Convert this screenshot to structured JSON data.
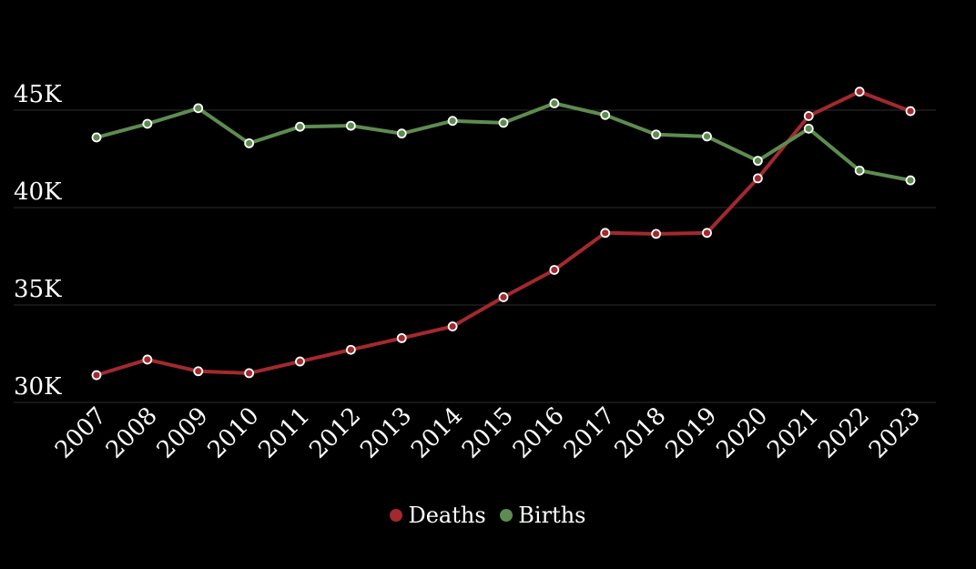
{
  "chart_data": {
    "type": "line",
    "title": "",
    "xlabel": "",
    "ylabel": "",
    "categories": [
      "2007",
      "2008",
      "2009",
      "2010",
      "2011",
      "2012",
      "2013",
      "2014",
      "2015",
      "2016",
      "2017",
      "2018",
      "2019",
      "2020",
      "2021",
      "2022",
      "2023"
    ],
    "series": [
      {
        "name": "Deaths",
        "color": "#a3292d",
        "values": [
          31400,
          32200,
          31600,
          31500,
          32100,
          32700,
          33300,
          33900,
          35400,
          36800,
          38700,
          38650,
          38700,
          41500,
          44700,
          45950,
          44950
        ]
      },
      {
        "name": "Births",
        "color": "#5e8c50",
        "values": [
          43600,
          44300,
          45100,
          43300,
          44150,
          44200,
          43800,
          44450,
          44350,
          45350,
          44750,
          43750,
          43650,
          42400,
          44050,
          41900,
          41400
        ]
      }
    ],
    "y_ticks": [
      30000,
      35000,
      40000,
      45000
    ],
    "y_tick_labels": [
      "30K",
      "35K",
      "40K",
      "45K"
    ],
    "ylim": [
      30000,
      46500
    ],
    "grid": true,
    "legend_position": "bottom-center"
  }
}
